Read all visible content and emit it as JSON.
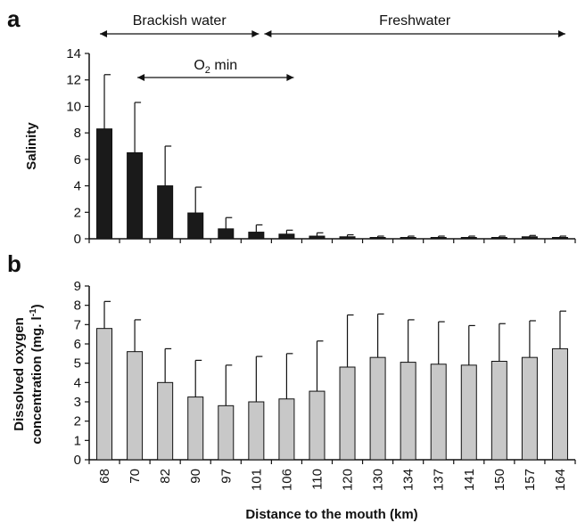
{
  "chart_data": [
    {
      "type": "bar",
      "panel_label": "a",
      "ylabel": "Salinity",
      "xlabel": "",
      "ylim": [
        0,
        14
      ],
      "yticks": [
        0,
        2,
        4,
        6,
        8,
        10,
        12,
        14
      ],
      "categories": [
        "68",
        "70",
        "82",
        "90",
        "97",
        "101",
        "106",
        "110",
        "120",
        "130",
        "134",
        "137",
        "141",
        "150",
        "157",
        "164"
      ],
      "values": [
        8.3,
        6.5,
        4.0,
        1.95,
        0.75,
        0.5,
        0.35,
        0.2,
        0.15,
        0.1,
        0.1,
        0.1,
        0.1,
        0.1,
        0.15,
        0.1
      ],
      "error_upper": [
        12.4,
        10.3,
        7.0,
        3.9,
        1.6,
        1.05,
        0.65,
        0.45,
        0.3,
        0.2,
        0.2,
        0.2,
        0.2,
        0.2,
        0.25,
        0.2
      ],
      "bar_color": "#1a1a1a",
      "annotations": [
        {
          "text": "Brackish water",
          "from": "68",
          "to": "101"
        },
        {
          "text": "Freshwater",
          "from": "106",
          "to": "164"
        },
        {
          "text": "O",
          "subscript": "2",
          "suffix": " min",
          "from": "70",
          "to": "106"
        }
      ]
    },
    {
      "type": "bar",
      "panel_label": "b",
      "ylabel": "Dissolved oxygen",
      "ylabel2": "concentration (mg. l",
      "ylabel2_sup": "-1",
      "ylabel2_end": ")",
      "xlabel": "Distance to the mouth (km)",
      "ylim": [
        0,
        9
      ],
      "yticks": [
        0,
        1,
        2,
        3,
        4,
        5,
        6,
        7,
        8,
        9
      ],
      "categories": [
        "68",
        "70",
        "82",
        "90",
        "97",
        "101",
        "106",
        "110",
        "120",
        "130",
        "134",
        "137",
        "141",
        "150",
        "157",
        "164"
      ],
      "values": [
        6.8,
        5.6,
        4.0,
        3.25,
        2.8,
        3.0,
        3.15,
        3.55,
        4.8,
        5.3,
        5.05,
        4.95,
        4.9,
        5.1,
        5.3,
        5.75
      ],
      "error_upper": [
        8.2,
        7.25,
        5.75,
        5.15,
        4.9,
        5.35,
        5.5,
        6.15,
        7.5,
        7.55,
        7.25,
        7.15,
        6.95,
        7.05,
        7.2,
        7.7
      ],
      "bar_color": "#c8c8c8"
    }
  ]
}
